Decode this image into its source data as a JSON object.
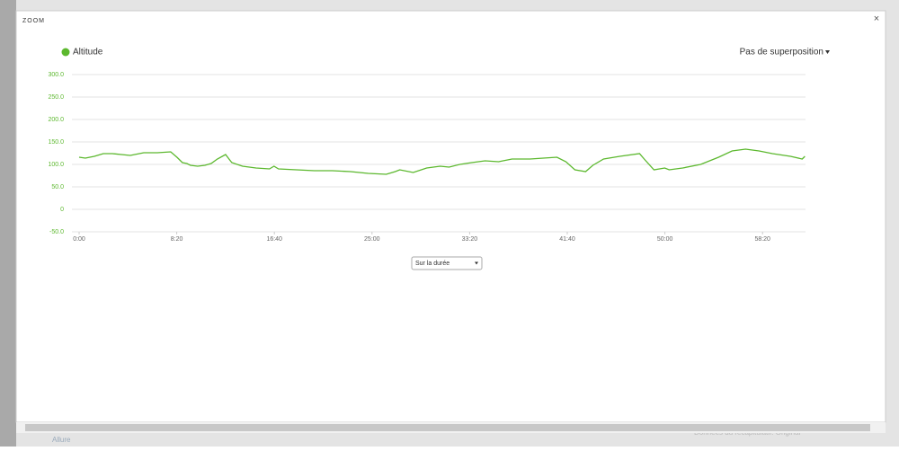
{
  "ui": {
    "title": "ZOOM",
    "close": "×",
    "overlay": "Pas de superposition",
    "range_select": "Sur la durée",
    "background_left": "Allure",
    "background_right": "Données du récapitulatif: Original"
  },
  "chart_data": {
    "type": "line",
    "x": [
      0,
      32,
      78,
      124,
      170,
      216,
      262,
      331,
      400,
      469,
      501,
      529,
      552,
      570,
      607,
      644,
      676,
      708,
      750,
      782,
      837,
      906,
      975,
      998,
      1021,
      1113,
      1205,
      1297,
      1389,
      1481,
      1573,
      1619,
      1642,
      1711,
      1780,
      1849,
      1895,
      1950,
      2010,
      2079,
      2148,
      2217,
      2309,
      2378,
      2447,
      2493,
      2539,
      2594,
      2631,
      2686,
      2769,
      2870,
      2898,
      2944,
      2999,
      3022,
      3091,
      3183,
      3275,
      3344,
      3413,
      3482,
      3551,
      3643,
      3703,
      3717
    ],
    "series": [
      {
        "name": "Altitude",
        "color": "#5cb82e",
        "values": [
          116,
          114,
          118,
          124,
          124,
          122,
          120,
          126,
          126,
          128,
          116,
          104,
          102,
          98,
          96,
          98,
          102,
          112,
          122,
          104,
          96,
          92,
          90,
          96,
          90,
          88,
          86,
          86,
          84,
          80,
          78,
          84,
          88,
          82,
          92,
          96,
          94,
          100,
          104,
          108,
          106,
          112,
          112,
          114,
          116,
          106,
          88,
          84,
          98,
          112,
          118,
          124,
          110,
          88,
          92,
          88,
          92,
          100,
          116,
          130,
          134,
          130,
          124,
          118,
          112,
          118
        ]
      }
    ],
    "xlim": [
      0,
      3720
    ],
    "xticks": [
      {
        "value": 0,
        "label": "0:00"
      },
      {
        "value": 500,
        "label": "8:20"
      },
      {
        "value": 1000,
        "label": "16:40"
      },
      {
        "value": 1500,
        "label": "25:00"
      },
      {
        "value": 2000,
        "label": "33:20"
      },
      {
        "value": 2500,
        "label": "41:40"
      },
      {
        "value": 3000,
        "label": "50:00"
      },
      {
        "value": 3500,
        "label": "58:20"
      }
    ],
    "ylim": [
      -50,
      300
    ],
    "yticks": [
      {
        "value": -50,
        "label": "-50.0"
      },
      0,
      {
        "value": 50,
        "label": "50.0"
      },
      {
        "value": 100,
        "label": "100.0"
      },
      {
        "value": 150,
        "label": "150.0"
      },
      {
        "value": 200,
        "label": "200.0"
      },
      {
        "value": 250,
        "label": "250.0"
      },
      {
        "value": 300,
        "label": "300.0"
      }
    ],
    "grid": true
  }
}
